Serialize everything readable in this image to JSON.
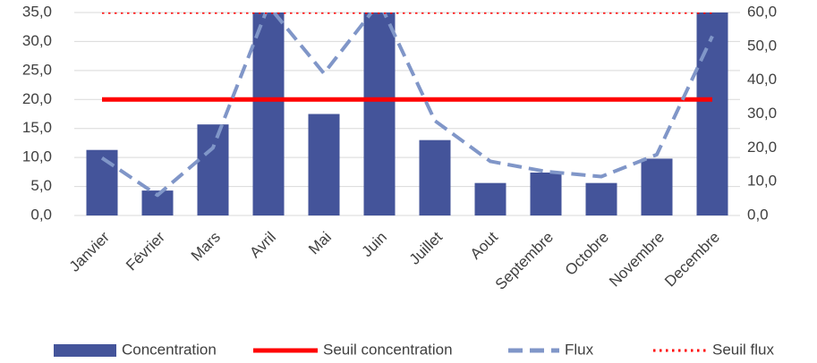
{
  "chart_data": {
    "type": "bar",
    "categories": [
      "Janvier",
      "Février",
      "Mars",
      "Avril",
      "Mai",
      "Juin",
      "Juillet",
      "Aout",
      "Septembre",
      "Octobre",
      "Novembre",
      "Decembre"
    ],
    "series": [
      {
        "name": "Concentration",
        "type": "bar",
        "color": "#44549a",
        "values": [
          11.3,
          4.3,
          15.7,
          35,
          17.5,
          35,
          13,
          5.6,
          7.4,
          5.6,
          9.8,
          35
        ]
      },
      {
        "name": "Seuil concentration",
        "type": "line",
        "style": "solid",
        "color": "#ff0000",
        "values": [
          20,
          20,
          20,
          20,
          20,
          20,
          20,
          20,
          20,
          20,
          20,
          20
        ]
      },
      {
        "name": "Flux",
        "type": "line",
        "style": "dashed",
        "axis": "y2",
        "color": "#8096c8",
        "values": [
          17,
          6,
          20,
          62,
          42,
          63,
          28,
          16,
          13,
          11.5,
          18,
          53
        ]
      },
      {
        "name": "Seuil flux",
        "type": "line",
        "style": "dotted",
        "axis": "y2",
        "color": "#ff0000",
        "values": [
          60,
          60,
          60,
          60,
          60,
          60,
          60,
          60,
          60,
          60,
          60,
          60
        ]
      }
    ],
    "ylim": [
      0,
      35
    ],
    "yticks": [
      {
        "value": 0,
        "label": "0,0"
      },
      {
        "value": 5,
        "label": "5,0"
      },
      {
        "value": 10,
        "label": "10,0"
      },
      {
        "value": 15,
        "label": "15,0"
      },
      {
        "value": 20,
        "label": "20,0"
      },
      {
        "value": 25,
        "label": "25,0"
      },
      {
        "value": 30,
        "label": "30,0"
      },
      {
        "value": 35,
        "label": "35,0"
      }
    ],
    "y2lim": [
      0,
      60
    ],
    "y2ticks": [
      {
        "value": 0,
        "label": "0,0"
      },
      {
        "value": 10,
        "label": "10,0"
      },
      {
        "value": 20,
        "label": "20,0"
      },
      {
        "value": 30,
        "label": "30,0"
      },
      {
        "value": 40,
        "label": "40,0"
      },
      {
        "value": 50,
        "label": "50,0"
      },
      {
        "value": 60,
        "label": "60,0"
      }
    ],
    "grid": true,
    "legend": "bottom"
  }
}
